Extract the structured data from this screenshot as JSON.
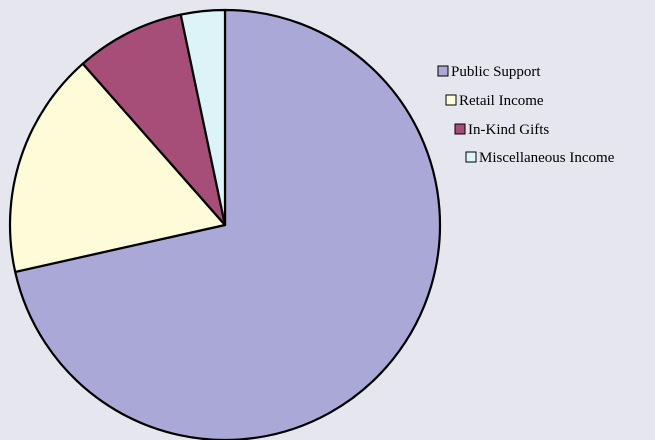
{
  "chart_data": {
    "type": "pie",
    "title": "",
    "start_angle_deg": 0,
    "direction": "clockwise",
    "legend_position": "right",
    "slices": [
      {
        "label": "Public Support",
        "value": 71.5,
        "color": "#aaa8d6"
      },
      {
        "label": "Retail Income",
        "value": 17.0,
        "color": "#fdfbd8"
      },
      {
        "label": "In-Kind Gifts",
        "value": 8.2,
        "color": "#a64d78"
      },
      {
        "label": "Miscellaneous Income",
        "value": 3.3,
        "color": "#dcf3f8"
      }
    ]
  }
}
